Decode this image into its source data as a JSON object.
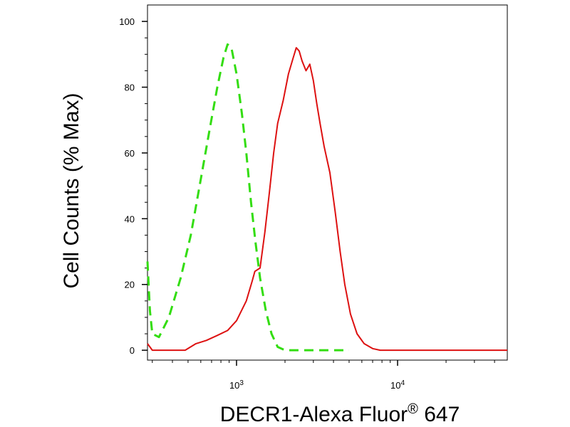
{
  "chart_data": {
    "type": "line",
    "xlabel": "DECR1-Alexa Fluor",
    "xlabel_sup": "®",
    "xlabel_suffix": " 647",
    "ylabel": "Cell Counts (% Max)",
    "x_scale": "log",
    "xlim": [
      280,
      48000
    ],
    "ylim": [
      -3,
      105
    ],
    "y_ticks": [
      {
        "value": 0,
        "label": "0"
      },
      {
        "value": 20,
        "label": "20"
      },
      {
        "value": 40,
        "label": "40"
      },
      {
        "value": 60,
        "label": "60"
      },
      {
        "value": 80,
        "label": "80"
      },
      {
        "value": 100,
        "label": "100"
      }
    ],
    "x_ticks": [
      {
        "value": 1000,
        "base": "10",
        "exp": "3"
      },
      {
        "value": 10000,
        "base": "10",
        "exp": "4"
      }
    ],
    "grid": false,
    "legend": "none",
    "series": [
      {
        "color": "#33dd11",
        "dash": "dashed",
        "points": [
          [
            280,
            27
          ],
          [
            290,
            12
          ],
          [
            300,
            5
          ],
          [
            330,
            4
          ],
          [
            380,
            10
          ],
          [
            450,
            22
          ],
          [
            520,
            35
          ],
          [
            600,
            52
          ],
          [
            680,
            67
          ],
          [
            760,
            80
          ],
          [
            830,
            89
          ],
          [
            880,
            93
          ],
          [
            930,
            92
          ],
          [
            1000,
            84
          ],
          [
            1080,
            72
          ],
          [
            1150,
            60
          ],
          [
            1230,
            45
          ],
          [
            1310,
            33
          ],
          [
            1400,
            22
          ],
          [
            1520,
            12
          ],
          [
            1650,
            5
          ],
          [
            1800,
            1
          ],
          [
            2000,
            0
          ],
          [
            2400,
            0
          ],
          [
            3000,
            0
          ],
          [
            4000,
            0
          ],
          [
            5000,
            0
          ]
        ]
      },
      {
        "color": "#dd1111",
        "dash": "solid",
        "points": [
          [
            280,
            2
          ],
          [
            300,
            0
          ],
          [
            350,
            0
          ],
          [
            480,
            0
          ],
          [
            560,
            2
          ],
          [
            650,
            3
          ],
          [
            760,
            4.5
          ],
          [
            880,
            6
          ],
          [
            1000,
            9
          ],
          [
            1150,
            15
          ],
          [
            1250,
            21
          ],
          [
            1300,
            24
          ],
          [
            1400,
            25
          ],
          [
            1500,
            36
          ],
          [
            1600,
            48
          ],
          [
            1700,
            60
          ],
          [
            1800,
            69
          ],
          [
            1950,
            76
          ],
          [
            2100,
            84
          ],
          [
            2250,
            89
          ],
          [
            2350,
            92
          ],
          [
            2450,
            91
          ],
          [
            2550,
            88
          ],
          [
            2700,
            85
          ],
          [
            2850,
            87
          ],
          [
            3000,
            82
          ],
          [
            3150,
            75
          ],
          [
            3300,
            69
          ],
          [
            3500,
            62
          ],
          [
            3800,
            54
          ],
          [
            4100,
            42
          ],
          [
            4400,
            30
          ],
          [
            4700,
            20
          ],
          [
            5100,
            11
          ],
          [
            5600,
            5
          ],
          [
            6200,
            2
          ],
          [
            7000,
            0.5
          ],
          [
            7800,
            0
          ],
          [
            9000,
            0
          ],
          [
            12000,
            0
          ],
          [
            20000,
            0
          ],
          [
            48000,
            0
          ]
        ]
      }
    ]
  }
}
